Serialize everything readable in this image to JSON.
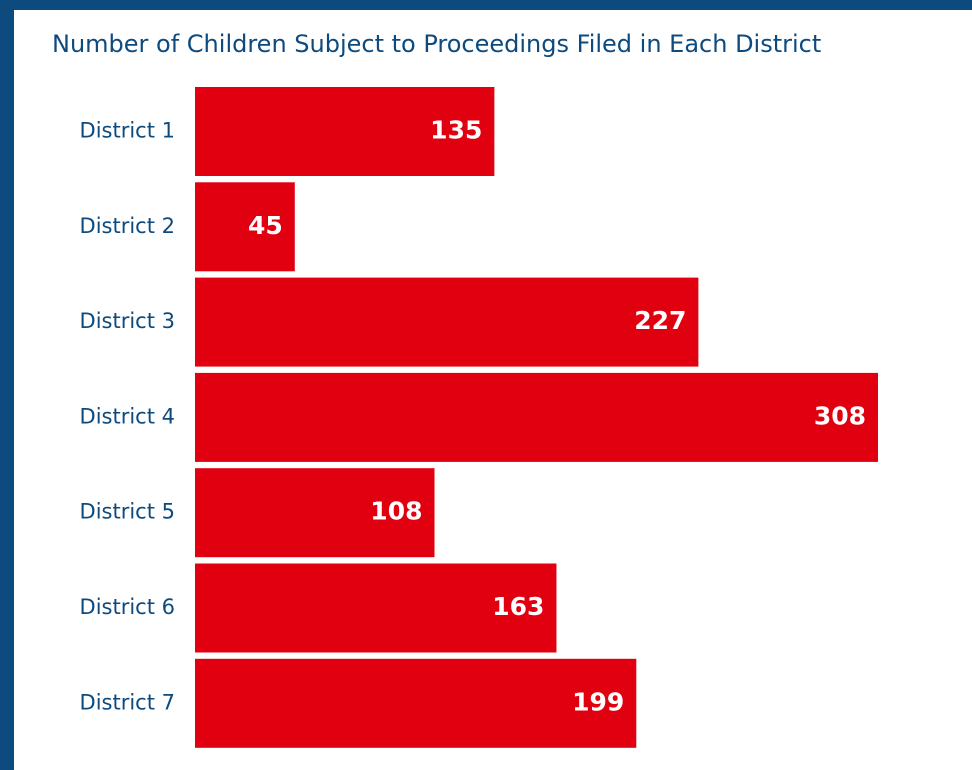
{
  "chart_data": {
    "type": "bar",
    "orientation": "horizontal",
    "title": "Number of Children Subject to Proceedings Filed in Each District",
    "categories": [
      "District 1",
      "District 2",
      "District 3",
      "District 4",
      "District 5",
      "District 6",
      "District 7"
    ],
    "values": [
      135,
      45,
      227,
      308,
      108,
      163,
      199
    ],
    "color": "#e1000f"
  }
}
